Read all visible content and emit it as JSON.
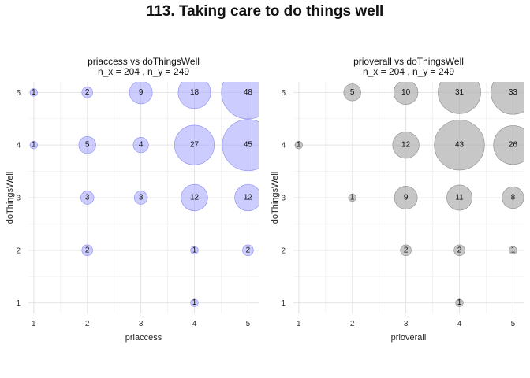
{
  "title": "113. Taking care to do things well",
  "chart_data": [
    {
      "type": "scatter",
      "subtitle_line1": "priaccess vs doThingsWell",
      "subtitle_line2": "n_x = 204 , n_y = 249",
      "xlabel": "priaccess",
      "ylabel": "doThingsWell",
      "xlim": [
        0.9,
        5.2
      ],
      "ylim": [
        0.8,
        5.2
      ],
      "ticks": [
        1,
        2,
        3,
        4,
        5
      ],
      "color": "#a3a3ff",
      "points": [
        {
          "x": 1,
          "y": 5,
          "n": 1
        },
        {
          "x": 2,
          "y": 5,
          "n": 2
        },
        {
          "x": 3,
          "y": 5,
          "n": 9
        },
        {
          "x": 4,
          "y": 5,
          "n": 18
        },
        {
          "x": 5,
          "y": 5,
          "n": 48
        },
        {
          "x": 1,
          "y": 4,
          "n": 1
        },
        {
          "x": 2,
          "y": 4,
          "n": 5
        },
        {
          "x": 3,
          "y": 4,
          "n": 4
        },
        {
          "x": 4,
          "y": 4,
          "n": 27
        },
        {
          "x": 5,
          "y": 4,
          "n": 45
        },
        {
          "x": 2,
          "y": 3,
          "n": 3
        },
        {
          "x": 3,
          "y": 3,
          "n": 3
        },
        {
          "x": 4,
          "y": 3,
          "n": 12
        },
        {
          "x": 5,
          "y": 3,
          "n": 12
        },
        {
          "x": 2,
          "y": 2,
          "n": 2
        },
        {
          "x": 4,
          "y": 2,
          "n": 1
        },
        {
          "x": 5,
          "y": 2,
          "n": 2
        },
        {
          "x": 4,
          "y": 1,
          "n": 1
        }
      ]
    },
    {
      "type": "scatter",
      "subtitle_line1": "prioverall vs doThingsWell",
      "subtitle_line2": "n_x = 204 , n_y = 249",
      "xlabel": "prioverall",
      "ylabel": "doThingsWell",
      "xlim": [
        0.9,
        5.2
      ],
      "ylim": [
        0.8,
        5.2
      ],
      "ticks": [
        1,
        2,
        3,
        4,
        5
      ],
      "color": "#b4b4b4",
      "points": [
        {
          "x": 2,
          "y": 5,
          "n": 5
        },
        {
          "x": 3,
          "y": 5,
          "n": 10
        },
        {
          "x": 4,
          "y": 5,
          "n": 31
        },
        {
          "x": 5,
          "y": 5,
          "n": 33
        },
        {
          "x": 1,
          "y": 4,
          "n": 1
        },
        {
          "x": 3,
          "y": 4,
          "n": 12
        },
        {
          "x": 4,
          "y": 4,
          "n": 43
        },
        {
          "x": 5,
          "y": 4,
          "n": 26
        },
        {
          "x": 2,
          "y": 3,
          "n": 1
        },
        {
          "x": 3,
          "y": 3,
          "n": 9
        },
        {
          "x": 4,
          "y": 3,
          "n": 11
        },
        {
          "x": 5,
          "y": 3,
          "n": 8
        },
        {
          "x": 3,
          "y": 2,
          "n": 2
        },
        {
          "x": 4,
          "y": 2,
          "n": 2
        },
        {
          "x": 5,
          "y": 2,
          "n": 1
        },
        {
          "x": 4,
          "y": 1,
          "n": 1
        }
      ]
    }
  ]
}
